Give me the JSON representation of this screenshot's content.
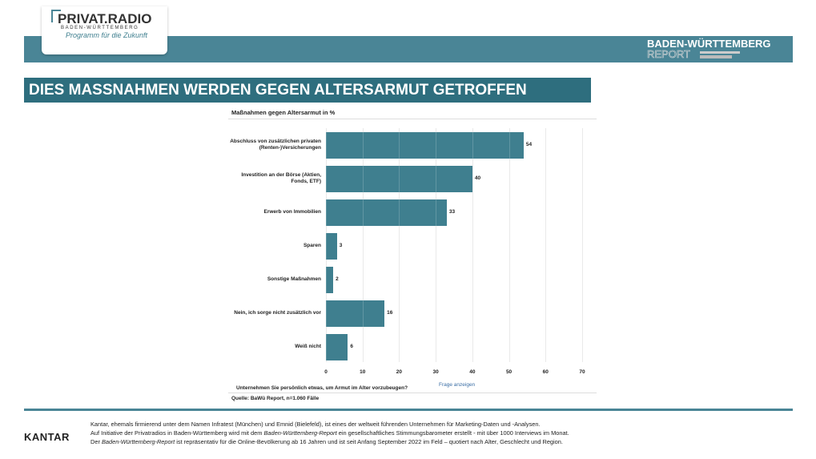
{
  "header": {
    "logo_title": "PRIVAT.RADIO",
    "logo_region": "BADEN-WÜRTTEMBERG",
    "logo_tagline": "Programm für die Zukunft",
    "report_title": "BADEN-WÜRTTEMBERG",
    "report_sub": "REPORT"
  },
  "slide_title": "DIES MASSNAHMEN WERDEN GEGEN ALTERSARMUT GETROFFEN",
  "chart_data": {
    "type": "bar",
    "orientation": "horizontal",
    "title": "Maßnahmen gegen Altersarmut in %",
    "categories": [
      "Abschluss von zusätzlichen privaten (Renten-)Versicherungen",
      "Investition an der Börse (Aktien, Fonds, ETF)",
      "Erwerb von Immobilien",
      "Sparen",
      "Sonstige Maßnahmen",
      "Nein, ich sorge nicht zusätzlich vor",
      "Weiß nicht"
    ],
    "values": [
      54,
      40,
      33,
      3,
      2,
      16,
      6
    ],
    "color": "#3f7f8f",
    "xlim": [
      0,
      70
    ],
    "xticks": [
      0,
      10,
      20,
      30,
      40,
      50,
      60,
      70
    ],
    "grid": true,
    "question": "Unternehmen Sie persönlich etwas, um Armut im Alter vorzubeugen?",
    "link": "Frage anzeigen",
    "source": "Quelle: BaWü Report, n=1.060 Fälle"
  },
  "footer": {
    "logo": "KANTAR",
    "lines": [
      [
        "Kantar, ehemals firmierend unter dem Namen Infratest (München) und Emnid (Bielefeld), ist eines der weltweit führenden Unternehmen für Marketing-Daten und -Analysen."
      ],
      [
        "Auf Initiative der Privatradios in Baden-Württemberg wird mit dem ",
        "Baden-Württemberg-Report",
        " ein gesellschaftliches Stimmungsbarometer erstellt - mit über 1000 Interviews im Monat."
      ],
      [
        "Der ",
        "Baden-Württemberg-Report",
        " ist repräsentativ für die Online-Bevölkerung ab 16 Jahren und ist seit Anfang September 2022 im Feld – quotiert nach Alter, Geschlecht und Region."
      ]
    ]
  }
}
